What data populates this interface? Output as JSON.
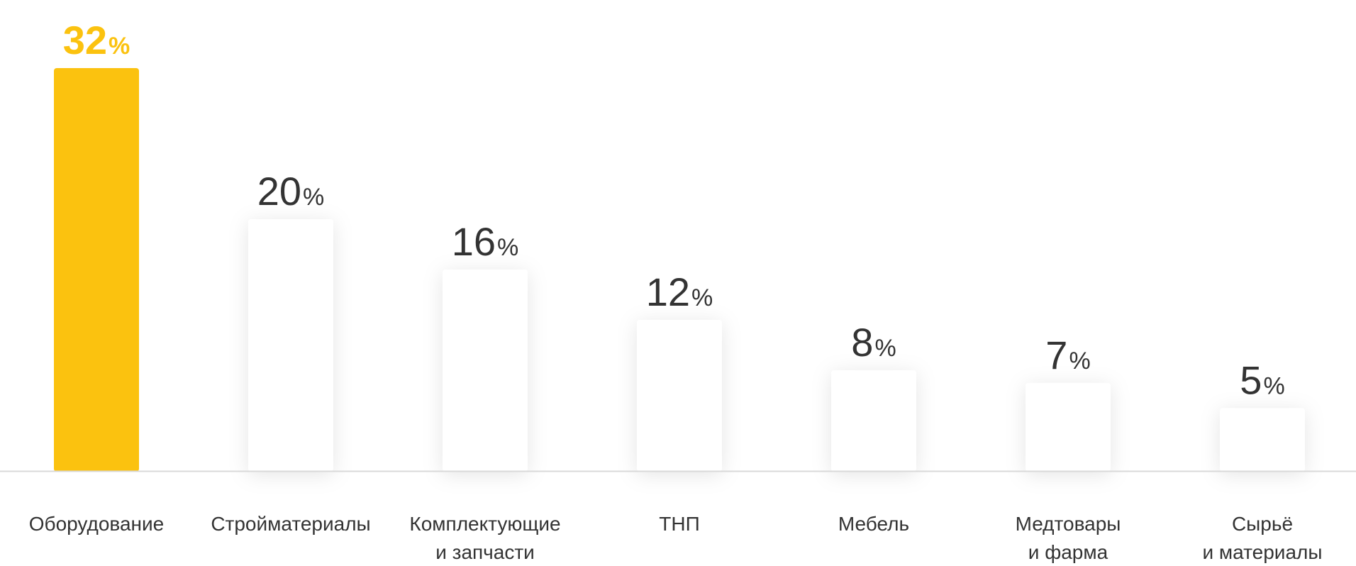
{
  "chart_data": {
    "type": "bar",
    "categories": [
      [
        "Оборудование"
      ],
      [
        "Стройматериалы"
      ],
      [
        "Комплектующие",
        "и запчасти"
      ],
      [
        "ТНП"
      ],
      [
        "Мебель"
      ],
      [
        "Медтовары",
        "и фарма"
      ],
      [
        "Сырьё",
        "и материалы"
      ]
    ],
    "values": [
      32,
      20,
      16,
      12,
      8,
      7,
      5
    ],
    "value_suffix": "%",
    "highlight_index": 0,
    "ylim": [
      0,
      32
    ],
    "grid": false,
    "legend": "none"
  },
  "colors": {
    "highlight": "#FBC20F",
    "bar": "#FFFFFF",
    "value_text": "#333333",
    "label_text": "#333333",
    "axis": "#D9D9D9"
  }
}
